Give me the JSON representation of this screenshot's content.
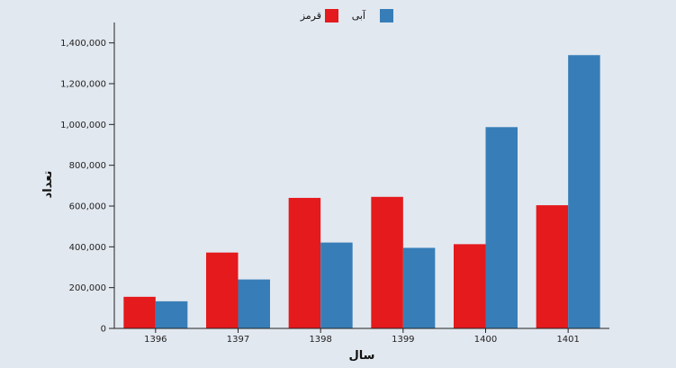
{
  "chart_data": {
    "type": "bar",
    "categories": [
      "1396",
      "1397",
      "1398",
      "1399",
      "1400",
      "1401"
    ],
    "series": [
      {
        "name": "قرمز",
        "color": "#e41a1c",
        "values": [
          155000,
          372000,
          640000,
          645000,
          413000,
          604000
        ]
      },
      {
        "name": "آبی",
        "color": "#377eb8",
        "values": [
          133000,
          240000,
          421000,
          395000,
          987000,
          1340000
        ]
      }
    ],
    "xlabel": "سال",
    "ylabel": "تعداد",
    "ylim": [
      0,
      1500000
    ],
    "yticks": [
      0,
      200000,
      400000,
      600000,
      800000,
      1000000,
      1200000,
      1400000
    ],
    "ytick_labels": [
      "0",
      "200,000",
      "400,000",
      "600,000",
      "800,000",
      "1,000,000",
      "1,200,000",
      "1,400,000"
    ],
    "grid": false,
    "legend": "top-center"
  }
}
